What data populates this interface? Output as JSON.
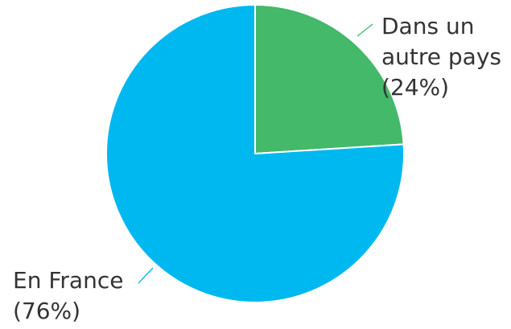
{
  "chart_data": {
    "type": "pie",
    "title": "",
    "slices": [
      {
        "name": "Dans un autre pays",
        "value": 24,
        "color": "#43b969",
        "label_lines": [
          "Dans un",
          "autre pays",
          "(24%)"
        ]
      },
      {
        "name": "En France",
        "value": 76,
        "color": "#00b8f0",
        "label_lines": [
          "En France",
          "(76%)"
        ]
      }
    ],
    "legend": "none",
    "label_position": "outside with leader lines"
  }
}
